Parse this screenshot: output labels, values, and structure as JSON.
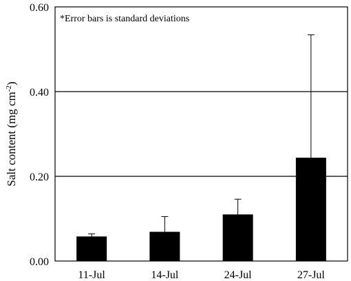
{
  "chart_data": {
    "type": "bar",
    "categories": [
      "11-Jul",
      "14-Jul",
      "24-Jul",
      "27-Jul"
    ],
    "values": [
      0.058,
      0.069,
      0.11,
      0.244
    ],
    "errors": [
      0.006,
      0.036,
      0.036,
      0.29
    ],
    "title": "",
    "xlabel": "",
    "ylabel": "Salt content (mg cm",
    "ylabel_superscript": "-2",
    "ylabel_suffix": ")",
    "ylim": [
      0,
      0.6
    ],
    "yticks": [
      "0.00",
      "0.20",
      "0.40",
      "0.60"
    ],
    "annotation": "*Error bars is standard deviations",
    "grid": true,
    "colors": {
      "bar": "#000000",
      "grid": "#000000",
      "frame": "#000000"
    }
  }
}
